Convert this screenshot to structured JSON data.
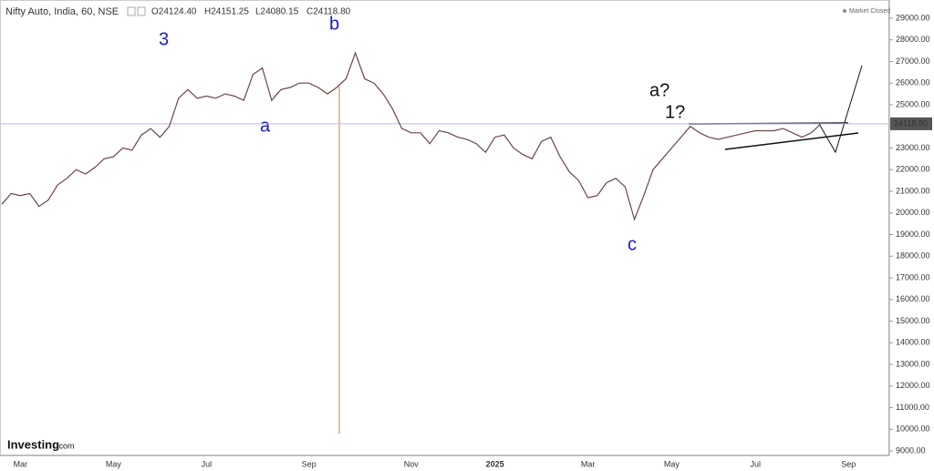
{
  "chart_data": {
    "type": "line",
    "title": "Nifty Auto, India, 60, NSE",
    "ohlc": [
      "O24124.40",
      "H24151.25",
      "L24080.15",
      "C24118.80"
    ],
    "status": "Market Closed",
    "brand": "Investing",
    "brand_suffix": ".com",
    "annotations": [
      "3",
      "a",
      "b",
      "a?",
      "1?",
      "c"
    ],
    "last_price": {
      "value": 24118.8,
      "label": "24118.80"
    },
    "categories": [
      null,
      null,
      "Mar",
      null,
      null,
      null,
      null,
      null,
      null,
      null,
      null,
      null,
      "May",
      null,
      null,
      null,
      null,
      null,
      null,
      null,
      null,
      null,
      "Jul",
      null,
      null,
      null,
      null,
      null,
      null,
      null,
      null,
      null,
      null,
      "Sep",
      null,
      null,
      null,
      null,
      null,
      null,
      null,
      null,
      null,
      null,
      "Nov",
      null,
      null,
      null,
      null,
      null,
      null,
      null,
      null,
      "2025",
      null,
      null,
      null,
      null,
      null,
      null,
      null,
      null,
      null,
      "Mar",
      null,
      null,
      null,
      null,
      null,
      null,
      null,
      null,
      "May",
      null,
      null,
      null,
      null,
      null,
      null,
      null,
      null,
      "Jul",
      null,
      null,
      null,
      null,
      null,
      null,
      null,
      null,
      null,
      "Sep"
    ],
    "series": [
      {
        "name": "Nifty Auto",
        "color": "#6b4545",
        "values": [
          20400,
          20900,
          20800,
          20900,
          20300,
          20600,
          21300,
          21600,
          22000,
          21800,
          22100,
          22500,
          22600,
          23000,
          22900,
          23600,
          23900,
          23500,
          24000,
          25300,
          25700,
          25300,
          25400,
          25300,
          25500,
          25400,
          25200,
          26400,
          26700,
          25200,
          25700,
          25800,
          26000,
          26000,
          25800,
          25500,
          25800,
          26200,
          27400,
          26200,
          26000,
          25500,
          24800,
          23900,
          23700,
          23700,
          23200,
          23800,
          23700,
          23500,
          23400,
          23200,
          22800,
          23500,
          23600,
          23000,
          22700,
          22500,
          23300,
          23500,
          22600,
          21900,
          21500,
          20700,
          20800,
          21400,
          21600,
          21200,
          19700,
          20800,
          22000,
          22500,
          23000,
          23500,
          24000,
          23700,
          23500,
          23400,
          23500,
          23600,
          23700,
          23800,
          23800,
          23800,
          23900,
          23700,
          23500,
          23700,
          24100,
          null,
          null,
          null
        ]
      }
    ],
    "ylim": [
      8790,
      29840
    ],
    "yticks": [
      {
        "value": 9000,
        "label": "9000.00"
      },
      {
        "value": 10000,
        "label": "10000.00"
      },
      {
        "value": 11000,
        "label": "11000.00"
      },
      {
        "value": 12000,
        "label": "12000.00"
      },
      {
        "value": 13000,
        "label": "13000.00"
      },
      {
        "value": 14000,
        "label": "14000.00"
      },
      {
        "value": 15000,
        "label": "15000.00"
      },
      {
        "value": 16000,
        "label": "16000.00"
      },
      {
        "value": 17000,
        "label": "17000.00"
      },
      {
        "value": 18000,
        "label": "18000.00"
      },
      {
        "value": 19000,
        "label": "19000.00"
      },
      {
        "value": 20000,
        "label": "20000.00"
      },
      {
        "value": 21000,
        "label": "21000.00"
      },
      {
        "value": 22000,
        "label": "22000.00"
      },
      {
        "value": 23000,
        "label": "23000.00"
      },
      {
        "value": 24000,
        "label": "24000.00"
      },
      {
        "value": 25000,
        "label": "25000.00"
      },
      {
        "value": 26000,
        "label": "26000.00"
      },
      {
        "value": 27000,
        "label": "27000.00"
      },
      {
        "value": 28000,
        "label": "28000.00"
      },
      {
        "value": 29000,
        "label": "29000.00"
      }
    ],
    "grid": false
  }
}
